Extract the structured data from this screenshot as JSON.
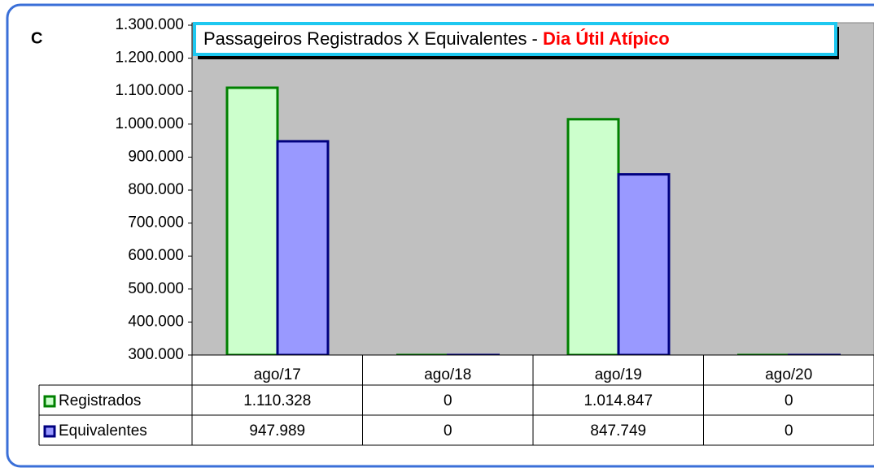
{
  "chart_data": {
    "type": "bar",
    "panel_label": "C",
    "title": "Passageiros Registrados X Equivalentes - ",
    "title_highlight": "Dia Útil Atípico",
    "categories": [
      "ago/17",
      "ago/18",
      "ago/19",
      "ago/20"
    ],
    "series": [
      {
        "name": "Registrados",
        "color": "#ccffcc",
        "edge_color": "#008000",
        "values": [
          1110328,
          0,
          1014847,
          0
        ],
        "value_labels": [
          "1.110.328",
          "0",
          "1.014.847",
          "0"
        ]
      },
      {
        "name": "Equivalentes",
        "color": "#9999ff",
        "edge_color": "#000080",
        "values": [
          947989,
          0,
          847749,
          0
        ],
        "value_labels": [
          "947.989",
          "0",
          "847.749",
          "0"
        ]
      }
    ],
    "ylim": [
      300000,
      1300000
    ],
    "yticks": [
      {
        "value": 300000,
        "label": "300.000"
      },
      {
        "value": 400000,
        "label": "400.000"
      },
      {
        "value": 500000,
        "label": "500.000"
      },
      {
        "value": 600000,
        "label": "600.000"
      },
      {
        "value": 700000,
        "label": "700.000"
      },
      {
        "value": 800000,
        "label": "800.000"
      },
      {
        "value": 900000,
        "label": "900.000"
      },
      {
        "value": 1000000,
        "label": "1.000.000"
      },
      {
        "value": 1100000,
        "label": "1.100.000"
      },
      {
        "value": 1200000,
        "label": "1.200.000"
      },
      {
        "value": 1300000,
        "label": "1.300.000"
      }
    ],
    "plot_background": "#c0c0c0"
  }
}
